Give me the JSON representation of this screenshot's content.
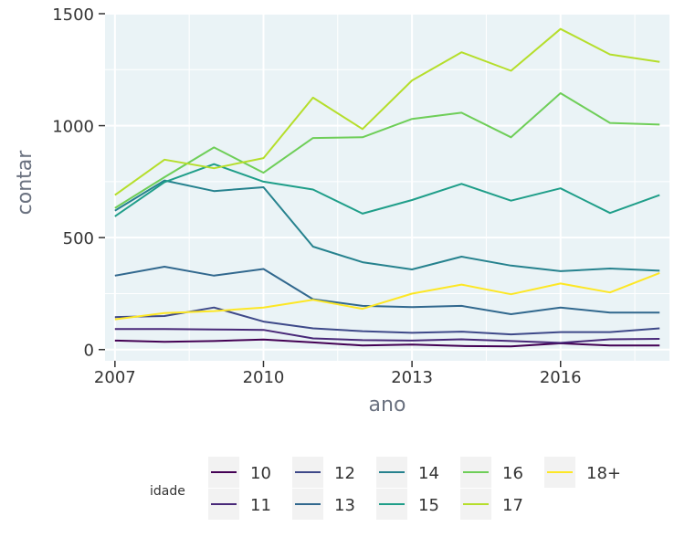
{
  "chart_data": {
    "type": "line",
    "xlabel": "ano",
    "ylabel": "contar",
    "x": [
      2007,
      2008,
      2009,
      2010,
      2011,
      2012,
      2013,
      2014,
      2015,
      2016,
      2017,
      2018
    ],
    "xticks": [
      2007,
      2010,
      2013,
      2016
    ],
    "yticks": [
      0,
      500,
      1000,
      1500
    ],
    "xlim": [
      2006.8,
      2018.2
    ],
    "ylim": [
      -50,
      1500
    ],
    "grid": true,
    "panel_background": "#eaf3f6",
    "legend": {
      "title": "idade",
      "position": "bottom"
    },
    "series": [
      {
        "name": "10",
        "color": "#440154",
        "values": [
          40,
          35,
          38,
          45,
          32,
          18,
          22,
          16,
          14,
          28,
          18,
          18
        ]
      },
      {
        "name": "11",
        "color": "#482878",
        "values": [
          92,
          92,
          90,
          88,
          50,
          42,
          40,
          46,
          38,
          30,
          46,
          48
        ]
      },
      {
        "name": "12",
        "color": "#3e4989",
        "values": [
          145,
          150,
          188,
          125,
          95,
          82,
          75,
          80,
          68,
          78,
          78,
          95
        ]
      },
      {
        "name": "13",
        "color": "#31688e",
        "values": [
          330,
          370,
          330,
          360,
          225,
          195,
          190,
          195,
          158,
          188,
          165,
          165
        ]
      },
      {
        "name": "14",
        "color": "#26828e",
        "values": [
          620,
          755,
          708,
          725,
          460,
          390,
          358,
          415,
          375,
          350,
          362,
          352
        ]
      },
      {
        "name": "15",
        "color": "#1f9e89",
        "values": [
          595,
          748,
          828,
          750,
          715,
          607,
          668,
          740,
          665,
          720,
          610,
          690
        ]
      },
      {
        "name": "16",
        "color": "#6ece58",
        "values": [
          632,
          770,
          903,
          790,
          945,
          948,
          1030,
          1058,
          948,
          1145,
          1012,
          1005
        ]
      },
      {
        "name": "17",
        "color": "#b5de2b",
        "values": [
          690,
          848,
          810,
          855,
          1125,
          985,
          1202,
          1328,
          1245,
          1432,
          1318,
          1285
        ]
      },
      {
        "name": "18+",
        "color": "#fde725",
        "values": [
          135,
          163,
          172,
          188,
          222,
          182,
          250,
          290,
          247,
          295,
          255,
          342
        ]
      }
    ]
  }
}
